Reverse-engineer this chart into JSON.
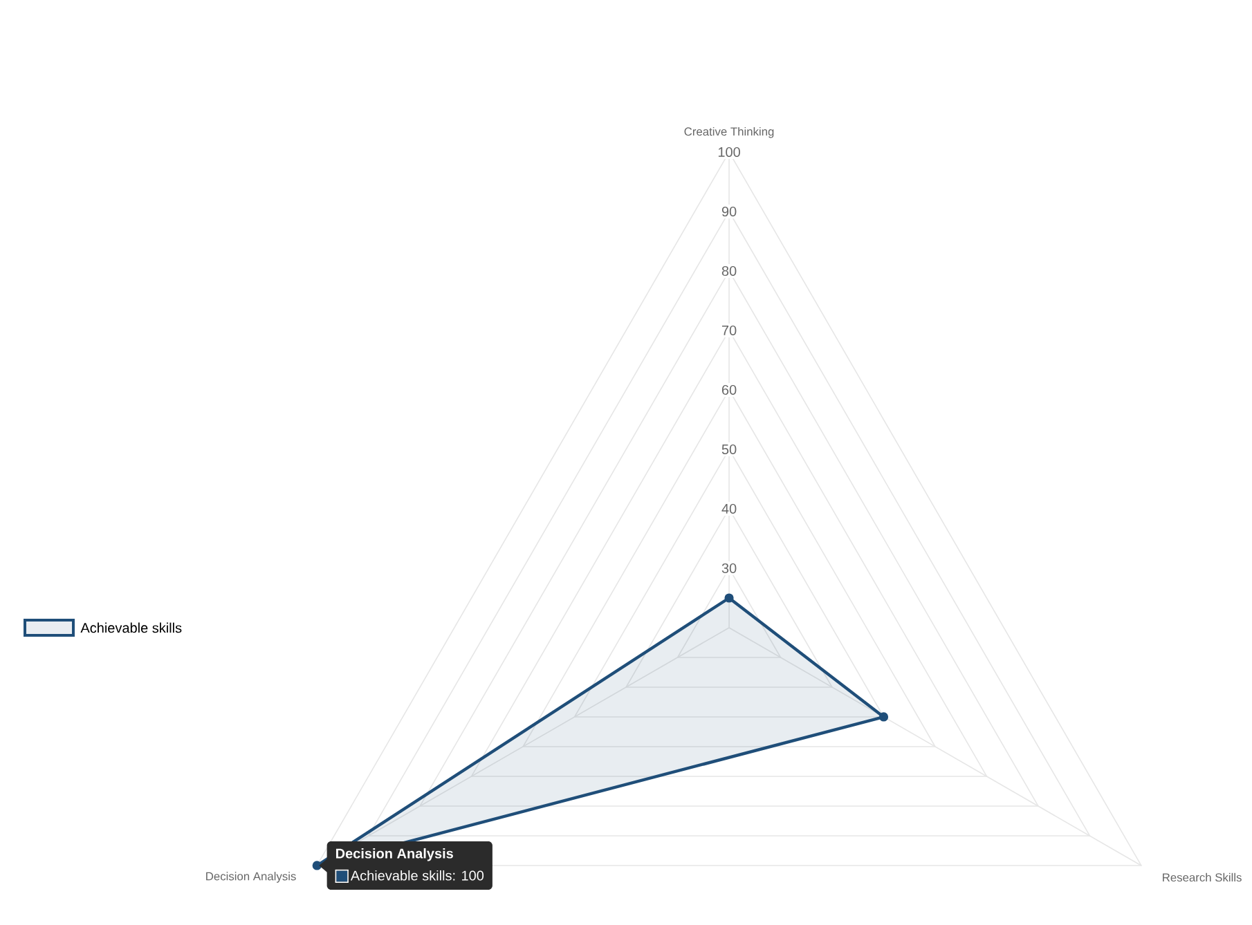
{
  "chart_data": {
    "type": "radar",
    "categories": [
      "Creative Thinking",
      "Research Skills",
      "Decision Analysis"
    ],
    "series": [
      {
        "name": "Achievable skills",
        "color": "#1f4e79",
        "values": [
          25,
          50,
          100
        ]
      }
    ],
    "ylim": [
      20,
      100
    ],
    "yticks": [
      30,
      40,
      50,
      60,
      70,
      80,
      90,
      100
    ],
    "grid": true,
    "legend": "left",
    "marker": "circle",
    "annotations": [
      {
        "text": "Decision Analysis",
        "x": "Decision Analysis"
      },
      {
        "text": "Achievable skills: 100",
        "x": "Decision Analysis"
      }
    ]
  }
}
